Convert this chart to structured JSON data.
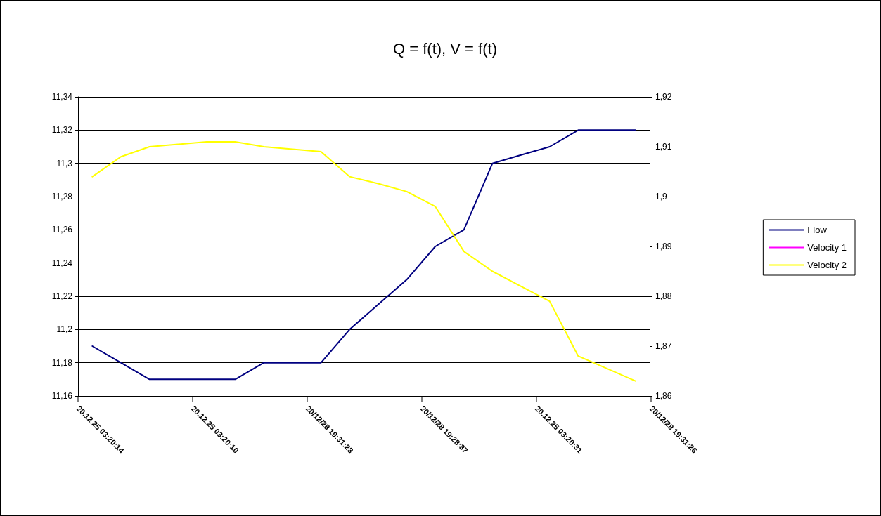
{
  "chart_data": {
    "type": "line",
    "title": "Q = f(t), V = f(t)",
    "categories": [
      null,
      null,
      null,
      null,
      null,
      null,
      null,
      null,
      null,
      null,
      null,
      null,
      null,
      null,
      null,
      null,
      null,
      null,
      null,
      null
    ],
    "annotations": [
      "20.12.25 03:20:14",
      "20.12.25 03:20:10",
      "20/12/28 19:31:23",
      "20/12/28 19:28:37",
      "20.12.25 03:20:31",
      "20/12/28 19:31:26"
    ],
    "ylim": [
      11.16,
      11.34
    ],
    "yticks": [
      {
        "value": 11.16,
        "label": "11,16"
      },
      {
        "value": 11.18,
        "label": "11,18"
      },
      {
        "value": 11.2,
        "label": "11,2"
      },
      {
        "value": 11.22,
        "label": "11,22"
      },
      {
        "value": 11.24,
        "label": "11,24"
      },
      {
        "value": 11.26,
        "label": "11,26"
      },
      {
        "value": 11.28,
        "label": "11,28"
      },
      {
        "value": 11.3,
        "label": "11,3"
      },
      {
        "value": 11.32,
        "label": "11,32"
      },
      {
        "value": 11.34,
        "label": "11,34"
      }
    ],
    "y2lim": [
      1.86,
      1.92
    ],
    "y2ticks": [
      {
        "value": 1.86,
        "label": "1,86"
      },
      {
        "value": 1.87,
        "label": "1,87"
      },
      {
        "value": 1.88,
        "label": "1,88"
      },
      {
        "value": 1.89,
        "label": "1,89"
      },
      {
        "value": 1.9,
        "label": "1,9"
      },
      {
        "value": 1.91,
        "label": "1,91"
      },
      {
        "value": 1.92,
        "label": "1,92"
      }
    ],
    "series": [
      {
        "name": "Flow",
        "color": "#000080",
        "values": [
          11.19,
          11.18,
          11.17,
          11.17,
          11.17,
          11.17,
          11.18,
          11.18,
          11.18,
          11.2,
          11.215,
          11.23,
          11.25,
          11.26,
          11.3,
          11.305,
          11.31,
          11.32,
          11.32,
          11.32
        ]
      },
      {
        "name": "Velocity 1",
        "color": "#ff00ff",
        "axis": "y2",
        "values": [
          null,
          null,
          null,
          null,
          null,
          null,
          null,
          null,
          null,
          null,
          null,
          null,
          null,
          null,
          null,
          null,
          null,
          null,
          null,
          null
        ]
      },
      {
        "name": "Velocity 2",
        "color": "#ffff00",
        "axis": "y2",
        "values": [
          1.904,
          1.908,
          1.91,
          1.9105,
          1.911,
          1.911,
          1.91,
          1.9095,
          1.909,
          1.904,
          1.9026,
          1.901,
          1.898,
          1.889,
          1.885,
          1.882,
          1.879,
          1.868,
          1.8655,
          1.863
        ]
      }
    ],
    "grid": "y",
    "legend": "right",
    "marker": "none",
    "line_style": "solid"
  }
}
